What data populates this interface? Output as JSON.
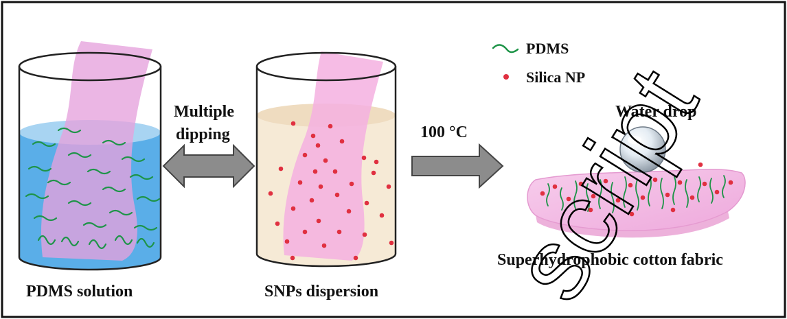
{
  "labels": {
    "beaker1_caption": "PDMS solution",
    "beaker2_caption": "SNPs dispersion",
    "step1_line1": "Multiple",
    "step1_line2": "dipping",
    "step2": "100 °C",
    "legend_pdms": "PDMS",
    "legend_silica": "Silica NP",
    "water_drop": "Water drop",
    "result_caption": "Superhydrophobic cotton fabric",
    "watermark": "script"
  },
  "colors": {
    "solution_blue": "#5aaee8",
    "solution_top": "#a8d4f2",
    "dispersion_beige": "#f6ead6",
    "fabric_pink": "#f4b8e6",
    "pdms_green": "#1e9448",
    "silica_red": "#e03040",
    "arrow_gray": "#8c8c8c"
  },
  "icons": {
    "arrow_double": "double-headed-arrow-icon",
    "arrow_right": "right-arrow-icon",
    "legend_pdms": "pdms-chain-icon",
    "legend_silica": "silica-dot-icon",
    "drop": "water-drop-icon"
  }
}
